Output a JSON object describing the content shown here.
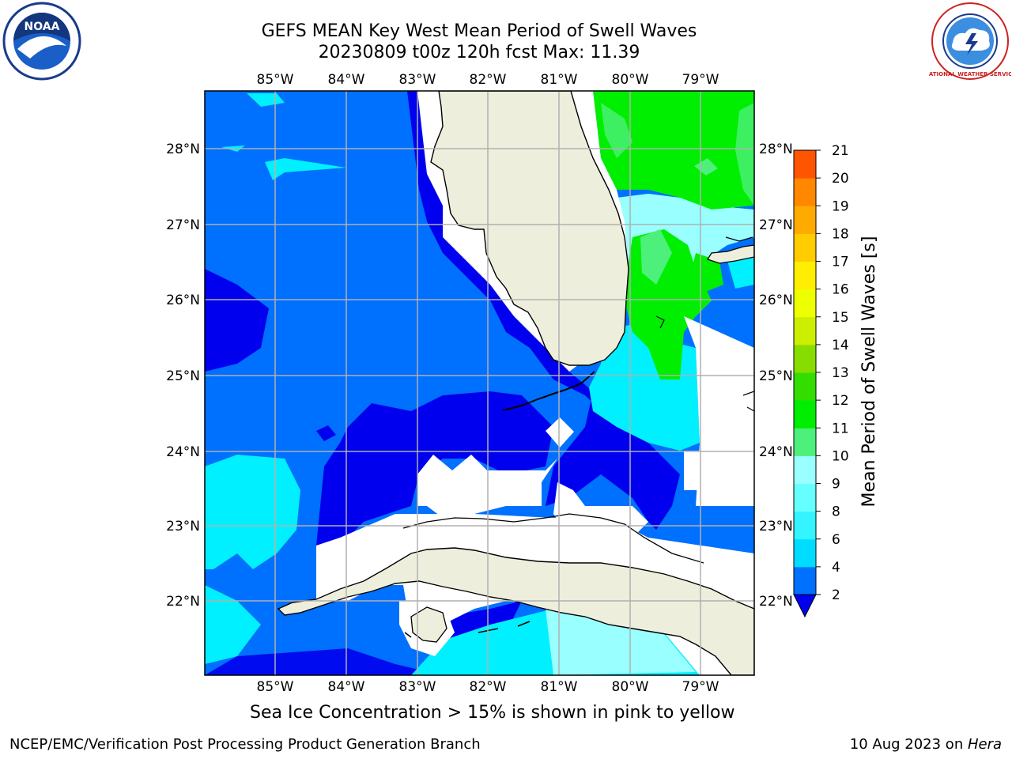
{
  "header": {
    "title_line1": "GEFS MEAN Key West Mean Period of Swell Waves",
    "title_line2": "20230809 t00z 120h fcst   Max: 11.39"
  },
  "logos": {
    "left": "noaa-logo",
    "right": "national-weather-service-logo",
    "left_text": "NOAA",
    "right_text": "NATIONAL WEATHER SERVICE"
  },
  "map": {
    "lon_labels": [
      "85°W",
      "84°W",
      "83°W",
      "82°W",
      "81°W",
      "80°W",
      "79°W"
    ],
    "lat_labels": [
      "28°N",
      "27°N",
      "26°N",
      "25°N",
      "24°N",
      "23°N",
      "22°N"
    ],
    "lon_range": [
      -86.0,
      -78.3
    ],
    "lat_range": [
      21.05,
      28.75
    ],
    "land_color": "#eeeedd",
    "coast_color": "#000000",
    "grid_color": "#b0b0b0"
  },
  "colorbar": {
    "label": "Mean Period of Swell Waves [s]",
    "ticks": [
      "2",
      "4",
      "6",
      "8",
      "9",
      "10",
      "11",
      "12",
      "13",
      "14",
      "15",
      "16",
      "17",
      "18",
      "19",
      "20",
      "21"
    ],
    "colors": [
      "#0070ff",
      "#00dcff",
      "#33f4ff",
      "#66ffff",
      "#99ffff",
      "#4cf07a",
      "#00ee00",
      "#33dd00",
      "#88dd00",
      "#ccee00",
      "#eeff00",
      "#ffee00",
      "#ffcc00",
      "#ffaa00",
      "#ff8800",
      "#ff5500",
      "#ff2200",
      "#ff0000"
    ],
    "extend_color": "#0000ee"
  },
  "bottom_note": "Sea Ice Concentration > 15% is shown in pink to yellow",
  "footer": {
    "left": "NCEP/EMC/Verification Post Processing Product Generation Branch",
    "right_prefix": "10 Aug 2023 on ",
    "right_machine": "Hera"
  }
}
